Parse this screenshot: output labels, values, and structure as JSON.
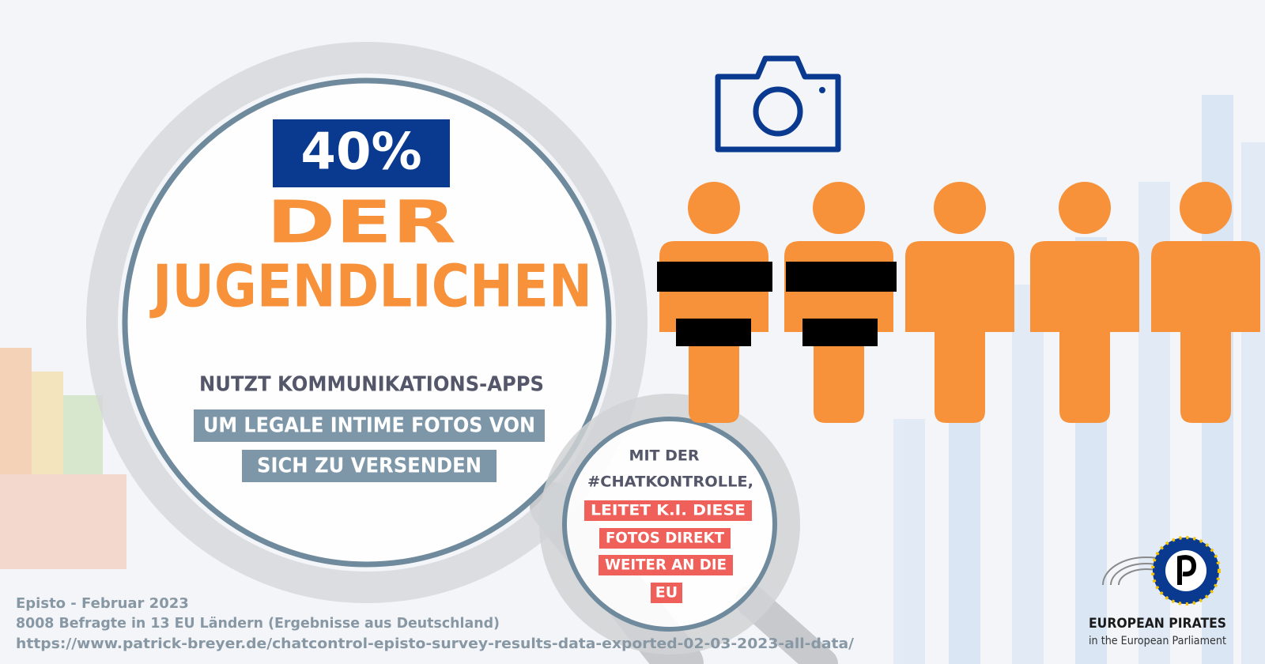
{
  "headline": {
    "percent": "40%",
    "line1": "DER",
    "line2": "JUGENDLICHEN"
  },
  "subtitle": "NUTZT KOMMUNIKATIONS-APPS",
  "highlight": [
    "UM LEGALE INTIME FOTOS VON",
    "SICH ZU VERSENDEN"
  ],
  "callout": {
    "intro": [
      "MIT DER",
      "#CHATKONTROLLE,"
    ],
    "highlight": [
      "LEITET K.I. DIESE",
      "FOTOS DIREKT",
      "WEITER AN DIE",
      "EU"
    ]
  },
  "source": [
    "Episto  - Februar 2023",
    "8008 Befragte in 13 EU Ländern (Ergebnisse aus Deutschland)",
    "https://www.patrick-breyer.de/chatcontrol-episto-survey-results-data-exported-02-03-2023-all-data/"
  ],
  "logo": {
    "name": "EUROPEAN PIRATES",
    "tagline": "in the European Parliament"
  }
}
